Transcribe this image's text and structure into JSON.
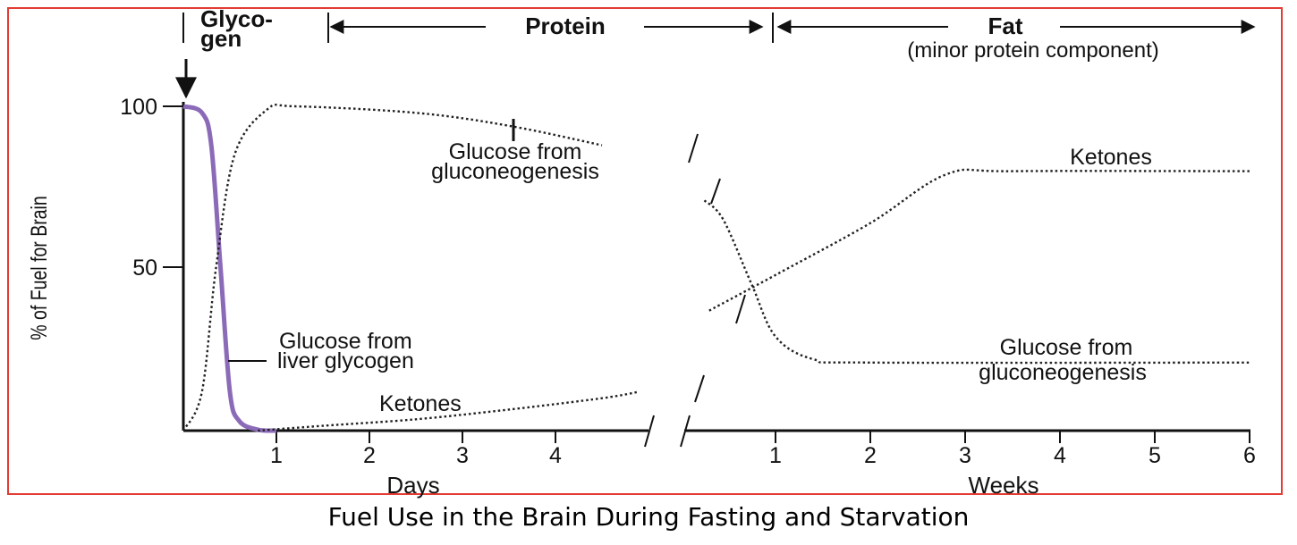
{
  "chart_data": {
    "type": "line",
    "ylabel": "% of Fuel for Brain",
    "ylim": [
      0,
      100
    ],
    "y_ticks": [
      "100",
      "50"
    ],
    "phase_labels": [
      {
        "text": "Glyco-",
        "line2": "gen"
      },
      {
        "text": "Protein"
      },
      {
        "text": "Fat",
        "sub": "(minor protein component)"
      }
    ],
    "days_axis": {
      "label": "Days",
      "ticks": [
        "1",
        "2",
        "3",
        "4"
      ]
    },
    "weeks_axis": {
      "label": "Weeks",
      "ticks": [
        "1",
        "2",
        "3",
        "4",
        "5",
        "6"
      ]
    },
    "series": [
      {
        "name": "Glucose from liver glycogen",
        "segment": "days",
        "style": "solid",
        "color": "#8b6bb8",
        "points": [
          [
            0,
            100
          ],
          [
            0.2,
            98
          ],
          [
            0.3,
            88
          ],
          [
            0.4,
            50
          ],
          [
            0.5,
            12
          ],
          [
            0.6,
            3
          ],
          [
            0.8,
            0.3
          ],
          [
            1,
            0
          ]
        ]
      },
      {
        "name": "Glucose from gluconeogenesis",
        "segment": "days",
        "style": "dotted",
        "color": "#222222",
        "points": [
          [
            0,
            0
          ],
          [
            0.2,
            12
          ],
          [
            0.35,
            50
          ],
          [
            0.55,
            85
          ],
          [
            0.9,
            99
          ],
          [
            1.2,
            100
          ],
          [
            2.5,
            98
          ],
          [
            3.5,
            94
          ],
          [
            4.5,
            88
          ]
        ]
      },
      {
        "name": "Ketones",
        "segment": "days",
        "style": "dotted",
        "color": "#222222",
        "points": [
          [
            0.8,
            0
          ],
          [
            1.5,
            1.5
          ],
          [
            2.5,
            3.5
          ],
          [
            3.5,
            6.5
          ],
          [
            4.5,
            10
          ],
          [
            4.9,
            12
          ]
        ]
      },
      {
        "name": "Glucose from gluconeogenesis",
        "segment": "weeks",
        "style": "dotted",
        "color": "#222222",
        "points": [
          [
            0.25,
            71
          ],
          [
            0.45,
            65
          ],
          [
            0.75,
            45
          ],
          [
            1.0,
            29
          ],
          [
            1.4,
            22
          ],
          [
            2,
            21
          ],
          [
            6,
            21
          ]
        ]
      },
      {
        "name": "Ketones",
        "segment": "weeks",
        "style": "dotted",
        "color": "#222222",
        "points": [
          [
            0.3,
            37
          ],
          [
            1,
            48
          ],
          [
            2,
            64
          ],
          [
            2.8,
            79
          ],
          [
            3.5,
            80
          ],
          [
            6,
            80
          ]
        ]
      }
    ],
    "annotations": [
      {
        "text": "Glucose from",
        "line2": "gluconeogenesis",
        "target": "days"
      },
      {
        "text": "Glucose from",
        "line2": "liver glycogen",
        "target": "days"
      },
      {
        "text": "Ketones",
        "target": "days"
      },
      {
        "text": "Ketones",
        "target": "weeks"
      },
      {
        "text": "Glucose from",
        "line2": "gluconeogenesis",
        "target": "weeks"
      }
    ],
    "caption": "Fuel Use in the Brain During Fasting and Starvation"
  }
}
